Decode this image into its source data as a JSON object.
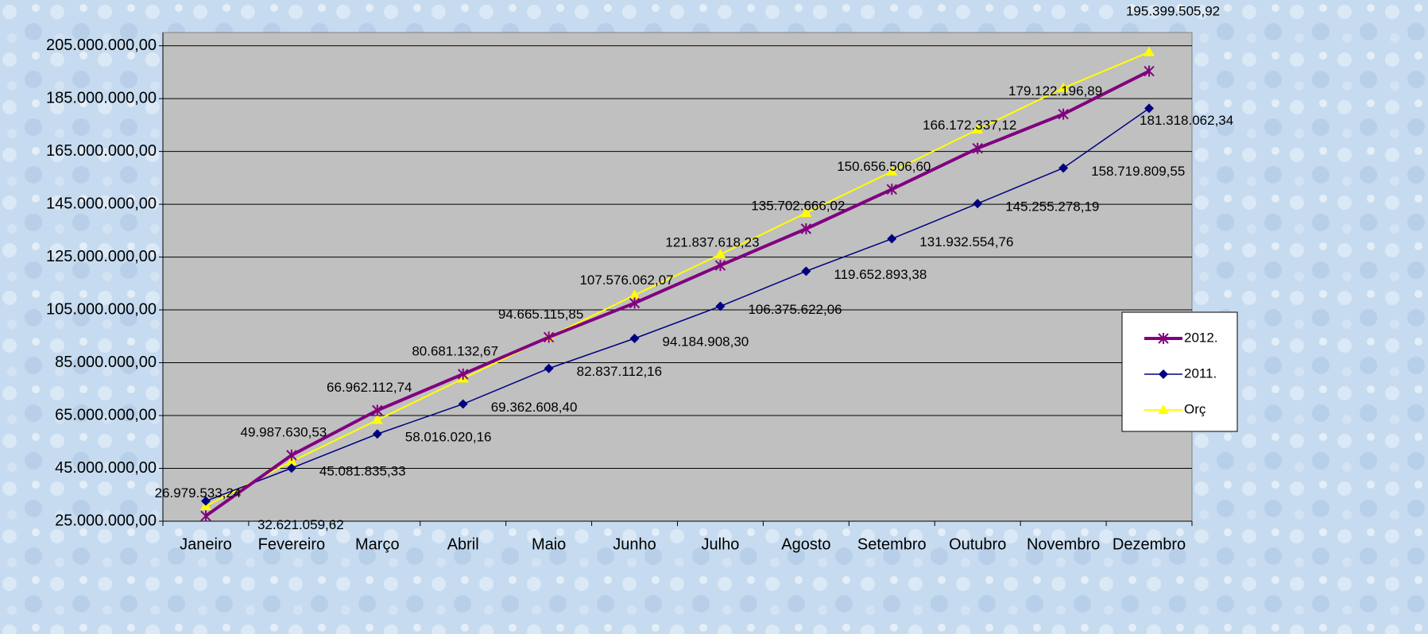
{
  "chart_data": {
    "type": "line",
    "categories": [
      "Janeiro",
      "Fevereiro",
      "Março",
      "Abril",
      "Maio",
      "Junho",
      "Julho",
      "Agosto",
      "Setembro",
      "Outubro",
      "Novembro",
      "Dezembro"
    ],
    "series": [
      {
        "name": "2012.",
        "color": "#800080",
        "marker": "star",
        "values": [
          26979533.24,
          49987630.53,
          66962112.74,
          80681132.67,
          94665115.85,
          107576062.07,
          121837618.23,
          135702666.02,
          150656506.6,
          166172337.12,
          179122196.89,
          195399505.92
        ],
        "value_labels": [
          "26.979.533,24",
          "49.987.630,53",
          "66.962.112,74",
          "80.681.132,67",
          "94.665.115,85",
          "107.576.062,07",
          "121.837.618,23",
          "135.702.666,02",
          "150.656.506,60",
          "166.172.337,12",
          "179.122.196,89",
          "195.399.505,92"
        ]
      },
      {
        "name": "2011.",
        "color": "#000080",
        "marker": "diamond",
        "values": [
          32621059.62,
          45081835.33,
          58016020.16,
          69362608.4,
          82837112.16,
          94184908.3,
          106375622.06,
          119652893.38,
          131932554.76,
          145255278.19,
          158719809.55,
          181318062.34
        ],
        "value_labels": [
          "32.621.059,62",
          "45.081.835,33",
          "58.016.020,16",
          "69.362.608,40",
          "82.837.112,16",
          "94.184.908,30",
          "106.375.622,06",
          "119.652.893,38",
          "131.932.554,76",
          "145.255.278,19",
          "158.719.809,55",
          "181.318.062,34"
        ]
      },
      {
        "name": "Orç",
        "color": "#ffff00",
        "marker": "triangle",
        "values": [
          30700000,
          47600000,
          63300000,
          79000000,
          94700000,
          110600000,
          126000000,
          141700000,
          157400000,
          173300000,
          189000000,
          202600000
        ]
      }
    ],
    "ylim": [
      25000000,
      210000000
    ],
    "yticks": [
      {
        "value": 25000000,
        "label": "25.000.000,00"
      },
      {
        "value": 45000000,
        "label": "45.000.000,00"
      },
      {
        "value": 65000000,
        "label": "65.000.000,00"
      },
      {
        "value": 85000000,
        "label": "85.000.000,00"
      },
      {
        "value": 105000000,
        "label": "105.000.000,00"
      },
      {
        "value": 125000000,
        "label": "125.000.000,00"
      },
      {
        "value": 145000000,
        "label": "145.000.000,00"
      },
      {
        "value": 165000000,
        "label": "165.000.000,00"
      },
      {
        "value": 185000000,
        "label": "185.000.000,00"
      },
      {
        "value": 205000000,
        "label": "205.000.000,00"
      }
    ],
    "grid": true,
    "legend": "right"
  }
}
